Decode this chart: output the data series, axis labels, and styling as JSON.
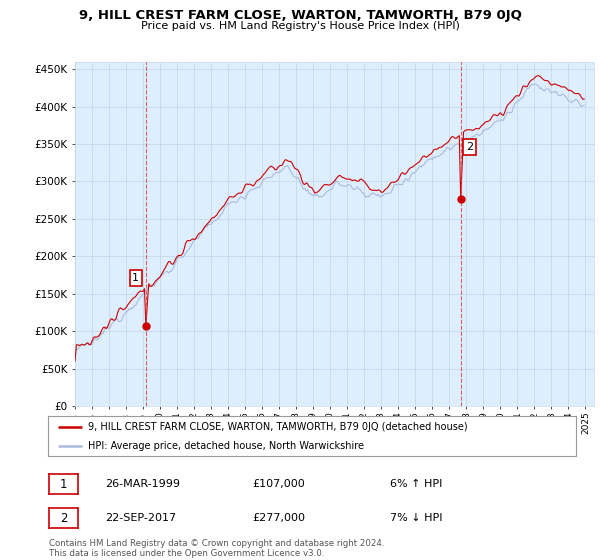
{
  "title": "9, HILL CREST FARM CLOSE, WARTON, TAMWORTH, B79 0JQ",
  "subtitle": "Price paid vs. HM Land Registry's House Price Index (HPI)",
  "ylabel_ticks": [
    "£0",
    "£50K",
    "£100K",
    "£150K",
    "£200K",
    "£250K",
    "£300K",
    "£350K",
    "£400K",
    "£450K"
  ],
  "ytick_values": [
    0,
    50000,
    100000,
    150000,
    200000,
    250000,
    300000,
    350000,
    400000,
    450000
  ],
  "ylim": [
    0,
    460000
  ],
  "start_year": 1995,
  "end_year": 2025,
  "hpi_color": "#aabbdd",
  "price_color": "#cc0000",
  "bg_color": "#ddeeff",
  "sale1_date_year": 1999,
  "sale1_date_month": 3,
  "sale1_value": 107000,
  "sale2_date_year": 2017,
  "sale2_date_month": 9,
  "sale2_value": 277000,
  "sale1_label": "1",
  "sale1_date": "26-MAR-1999",
  "sale1_price": "£107,000",
  "sale1_hpi": "6% ↑ HPI",
  "sale2_label": "2",
  "sale2_date": "22-SEP-2017",
  "sale2_price": "£277,000",
  "sale2_hpi": "7% ↓ HPI",
  "legend_line1": "9, HILL CREST FARM CLOSE, WARTON, TAMWORTH, B79 0JQ (detached house)",
  "legend_line2": "HPI: Average price, detached house, North Warwickshire",
  "footer": "Contains HM Land Registry data © Crown copyright and database right 2024.\nThis data is licensed under the Open Government Licence v3.0.",
  "grid_color": "#c8d8e8"
}
